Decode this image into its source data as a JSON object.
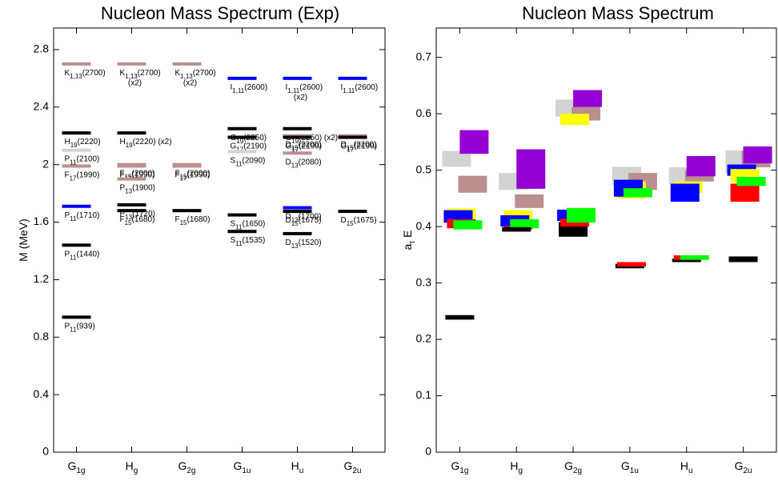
{
  "chart_data": [
    {
      "type": "level",
      "title": "Nucleon Mass Spectrum (Exp)",
      "y_label": "M (MeV)",
      "categories": [
        "G1g",
        "Hg",
        "G2g",
        "G1u",
        "Hu",
        "G2u"
      ],
      "ylim": [
        0,
        2.95
      ],
      "yticks": [
        0,
        0.4,
        0.8,
        1.2,
        1.6,
        2,
        2.4,
        2.8
      ],
      "levels": [
        [
          {
            "value": 2.7,
            "color": "#bc8f8f",
            "label": "K1,13(2700)"
          },
          {
            "value": 2.22,
            "color": "#000000",
            "label": "H19(2220)"
          },
          {
            "value": 2.1,
            "color": "#d3d3d3",
            "label": "P11(2100)"
          },
          {
            "value": 1.99,
            "color": "#bc8f8f",
            "label": "F17(1990)"
          },
          {
            "value": 1.71,
            "color": "#0000ff",
            "label": "P11(1710)"
          },
          {
            "value": 1.44,
            "color": "#000000",
            "label": "P11(1440)"
          },
          {
            "value": 0.939,
            "color": "#000000",
            "label": "P11(939)"
          }
        ],
        [
          {
            "value": 2.7,
            "color": "#bc8f8f",
            "label": "K1,13(2700)",
            "note": "(x2)"
          },
          {
            "value": 2.22,
            "color": "#000000",
            "label": "H19(2220) (x2)"
          },
          {
            "value": 2.0,
            "color": "#bc8f8f",
            "label": "F15(2000)"
          },
          {
            "value": 1.99,
            "color": "#bc8f8f",
            "label": "F17(1990)"
          },
          {
            "value": 1.9,
            "color": "#bc8f8f",
            "label": "P13(1900)"
          },
          {
            "value": 1.72,
            "color": "#000000",
            "label": "P13(1720)"
          },
          {
            "value": 1.68,
            "color": "#000000",
            "label": "F15(1680)"
          }
        ],
        [
          {
            "value": 2.7,
            "color": "#bc8f8f",
            "label": "K1,13(2700)",
            "note": "(x2)"
          },
          {
            "value": 2.0,
            "color": "#bc8f8f",
            "label": "F15(2000)"
          },
          {
            "value": 1.99,
            "color": "#bc8f8f",
            "label": "F17(1990)"
          },
          {
            "value": 1.68,
            "color": "#000000",
            "label": "F15(1680)"
          }
        ],
        [
          {
            "value": 2.6,
            "color": "#0000ff",
            "label": "I1,11(2600)"
          },
          {
            "value": 2.25,
            "color": "#000000",
            "label": "G19(2250)"
          },
          {
            "value": 2.19,
            "color": "#000000",
            "label": "G17(2190)"
          },
          {
            "value": 2.09,
            "color": "#d3d3d3",
            "label": "S11(2090)"
          },
          {
            "value": 1.65,
            "color": "#000000",
            "label": "S11(1650)"
          },
          {
            "value": 1.535,
            "color": "#000000",
            "label": "S11(1535)"
          }
        ],
        [
          {
            "value": 2.6,
            "color": "#0000ff",
            "label": "I1,11(2600)",
            "note": "(x2)"
          },
          {
            "value": 2.25,
            "color": "#000000",
            "label": "G19(2250) (x2)"
          },
          {
            "value": 2.2,
            "color": "#bc8f8f",
            "label": "D15(2200)"
          },
          {
            "value": 2.19,
            "color": "#000000",
            "label": "G17(2190)"
          },
          {
            "value": 2.08,
            "color": "#bc8f8f",
            "label": "D13(2080)"
          },
          {
            "value": 1.7,
            "color": "#0000ff",
            "label": "D13(1700)"
          },
          {
            "value": 1.675,
            "color": "#000000",
            "label": "D15(1675)"
          },
          {
            "value": 1.52,
            "color": "#000000",
            "label": "D13(1520)"
          }
        ],
        [
          {
            "value": 2.6,
            "color": "#0000ff",
            "label": "I1,11(2600)"
          },
          {
            "value": 2.2,
            "color": "#bc8f8f",
            "label": "D15(2200)"
          },
          {
            "value": 2.19,
            "color": "#000000",
            "label": "G17(2190)"
          },
          {
            "value": 1.675,
            "color": "#000000",
            "label": "D15(1675)"
          }
        ]
      ]
    },
    {
      "type": "box",
      "title": "Nucleon Mass Spectrum",
      "y_label": "aτ E",
      "categories": [
        "G1g",
        "Hg",
        "G2g",
        "G1u",
        "Hu",
        "G2u"
      ],
      "ylim": [
        0,
        0.752
      ],
      "yticks": [
        0,
        0.1,
        0.2,
        0.3,
        0.4,
        0.5,
        0.6,
        0.7
      ],
      "groups": [
        [
          {
            "value": 0.52,
            "error": 0.014,
            "color": "#d3d3d3"
          },
          {
            "value": 0.475,
            "error": 0.015,
            "color": "#bc8f8f"
          },
          {
            "value": 0.55,
            "error": 0.021,
            "color": "#9400d3"
          },
          {
            "value": 0.423,
            "error": 0.009,
            "color": "#ffff00"
          },
          {
            "value": 0.418,
            "error": 0.011,
            "color": "#0000ff"
          },
          {
            "value": 0.405,
            "error": 0.008,
            "color": "#ff0000"
          },
          {
            "value": 0.403,
            "error": 0.008,
            "color": "#00ff00"
          },
          {
            "value": 0.239,
            "error": 0.004,
            "color": "#000000"
          }
        ],
        [
          {
            "value": 0.48,
            "error": 0.015,
            "color": "#d3d3d3"
          },
          {
            "value": 0.445,
            "error": 0.012,
            "color": "#bc8f8f"
          },
          {
            "value": 0.502,
            "error": 0.035,
            "color": "#9400d3"
          },
          {
            "value": 0.419,
            "error": 0.01,
            "color": "#ffff00"
          },
          {
            "value": 0.41,
            "error": 0.01,
            "color": "#0000ff"
          },
          {
            "value": 0.398,
            "error": 0.003,
            "color": "#ff0000"
          },
          {
            "value": 0.405,
            "error": 0.008,
            "color": "#00ff00"
          },
          {
            "value": 0.395,
            "error": 0.004,
            "color": "#000000"
          }
        ],
        [
          {
            "value": 0.61,
            "error": 0.015,
            "color": "#d3d3d3"
          },
          {
            "value": 0.6,
            "error": 0.012,
            "color": "#bc8f8f"
          },
          {
            "value": 0.627,
            "error": 0.015,
            "color": "#9400d3"
          },
          {
            "value": 0.59,
            "error": 0.01,
            "color": "#ffff00"
          },
          {
            "value": 0.395,
            "error": 0.013,
            "color": "#000000"
          },
          {
            "value": 0.42,
            "error": 0.01,
            "color": "#0000ff"
          },
          {
            "value": 0.407,
            "error": 0.007,
            "color": "#ff0000"
          },
          {
            "value": 0.42,
            "error": 0.013,
            "color": "#00ff00"
          }
        ],
        [
          {
            "value": 0.49,
            "error": 0.016,
            "color": "#d3d3d3"
          },
          {
            "value": 0.48,
            "error": 0.015,
            "color": "#bc8f8f"
          },
          {
            "value": 0.465,
            "error": 0.015,
            "color": "#ffff00"
          },
          {
            "value": 0.468,
            "error": 0.015,
            "color": "#0000ff"
          },
          {
            "value": 0.46,
            "error": 0.008,
            "color": "#00ff00"
          },
          {
            "value": 0.33,
            "error": 0.004,
            "color": "#000000"
          },
          {
            "value": 0.333,
            "error": 0.004,
            "color": "#ff0000"
          }
        ],
        [
          {
            "value": 0.49,
            "error": 0.015,
            "color": "#d3d3d3"
          },
          {
            "value": 0.49,
            "error": 0.01,
            "color": "#bc8f8f"
          },
          {
            "value": 0.507,
            "error": 0.018,
            "color": "#9400d3"
          },
          {
            "value": 0.47,
            "error": 0.01,
            "color": "#ffff00"
          },
          {
            "value": 0.46,
            "error": 0.016,
            "color": "#0000ff"
          },
          {
            "value": 0.34,
            "error": 0.003,
            "color": "#000000"
          },
          {
            "value": 0.345,
            "error": 0.004,
            "color": "#ff0000"
          },
          {
            "value": 0.345,
            "error": 0.004,
            "color": "#00ff00"
          }
        ],
        [
          {
            "value": 0.515,
            "error": 0.02,
            "color": "#d3d3d3"
          },
          {
            "value": 0.52,
            "error": 0.015,
            "color": "#bc8f8f"
          },
          {
            "value": 0.527,
            "error": 0.015,
            "color": "#9400d3"
          },
          {
            "value": 0.5,
            "error": 0.01,
            "color": "#0000ff"
          },
          {
            "value": 0.46,
            "error": 0.016,
            "color": "#ff0000"
          },
          {
            "value": 0.49,
            "error": 0.012,
            "color": "#ffff00"
          },
          {
            "value": 0.48,
            "error": 0.008,
            "color": "#00ff00"
          },
          {
            "value": 0.342,
            "error": 0.005,
            "color": "#000000"
          }
        ]
      ]
    }
  ]
}
